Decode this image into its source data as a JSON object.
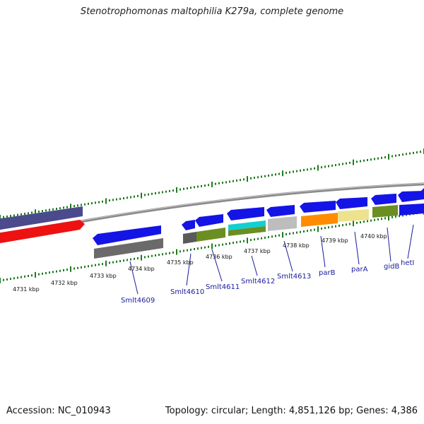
{
  "title": "Stenotrophomonas maltophilia K279a, complete genome",
  "footer": {
    "accession": "Accession: NC_010943",
    "summary": "Topology: circular; Length: 4,851,126 bp; Genes: 4,386"
  },
  "colors": {
    "backbone": "#8a8a8a",
    "ticks": "#1f7a1f",
    "gene_label": "#1a1a9e"
  },
  "kbp_labels": [
    "4731 kbp",
    "4732 kbp",
    "4733 kbp",
    "4734 kbp",
    "4735 kbp",
    "4736 kbp",
    "4737 kbp",
    "4738 kbp",
    "4739 kbp",
    "4740 kbp"
  ],
  "gene_labels": [
    "Smlt4609",
    "Smlt4610",
    "Smlt4611",
    "Smlt4612",
    "Smlt4613",
    "parB",
    "parA",
    "gidB",
    "hetI"
  ]
}
